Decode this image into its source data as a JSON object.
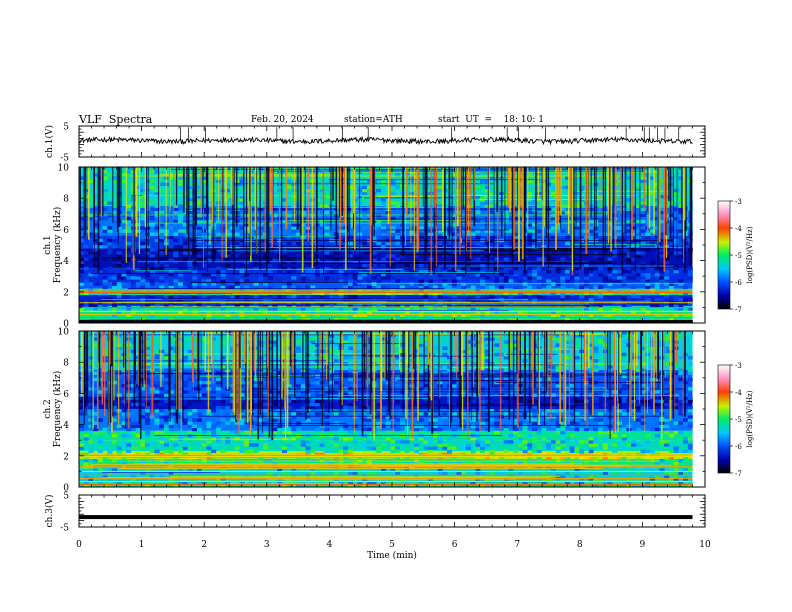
{
  "header": {
    "title": "VLF  Spectra",
    "date": "Feb. 20, 2024",
    "station": "station=ATH",
    "start_ut": "start  UT  =    18: 10: 1"
  },
  "chart_data": [
    {
      "type": "line",
      "name": "ch1-waveform",
      "ylabel": "ch.1(V)",
      "ylim": [
        -5,
        5
      ],
      "yticks": [
        -5,
        5
      ],
      "xlim": [
        0,
        10
      ],
      "baseline": 0.3,
      "spike_times": [
        1.62,
        1.75,
        2.02,
        3.16,
        3.42,
        4.21,
        4.62,
        5.95,
        6.84,
        7.02,
        7.45,
        8.74,
        9.03,
        9.11,
        9.24,
        9.36,
        9.58
      ]
    },
    {
      "type": "heatmap",
      "name": "ch1-spectrogram",
      "ylabel_top": "ch.1",
      "ylabel": "Frequency  (kHz)",
      "ylim": [
        0,
        10
      ],
      "yticks": [
        0,
        2,
        4,
        6,
        8,
        10
      ],
      "xlim": [
        0,
        10
      ],
      "colorbar": {
        "label": "log(PSD)(V²/Hz)",
        "range": [
          -7,
          -3
        ],
        "ticks": [
          -3,
          -4,
          -5,
          -6,
          -7
        ]
      },
      "bands": [
        {
          "from": 0.0,
          "to": 0.2,
          "level": -7.3
        },
        {
          "from": 0.2,
          "to": 0.8,
          "level": -5.2
        },
        {
          "from": 0.8,
          "to": 1.1,
          "level": -5.4
        },
        {
          "from": 1.1,
          "to": 1.8,
          "level": -6.4
        },
        {
          "from": 1.8,
          "to": 2.2,
          "level": -5.3
        },
        {
          "from": 2.2,
          "to": 2.6,
          "level": -6.0
        },
        {
          "from": 2.6,
          "to": 3.5,
          "level": -6.3
        },
        {
          "from": 3.5,
          "to": 4.8,
          "level": -6.6
        },
        {
          "from": 4.8,
          "to": 5.6,
          "level": -6.2
        },
        {
          "from": 5.6,
          "to": 7.5,
          "level": -5.9
        },
        {
          "from": 7.5,
          "to": 10.0,
          "level": -5.4
        }
      ]
    },
    {
      "type": "heatmap",
      "name": "ch2-spectrogram",
      "ylabel_top": "ch.2",
      "ylabel": "Frequency  (kHz)",
      "ylim": [
        0,
        10
      ],
      "yticks": [
        0,
        2,
        4,
        6,
        8,
        10
      ],
      "xlim": [
        0,
        10
      ],
      "colorbar": {
        "label": "log(PSD)(V²/Hz)",
        "range": [
          -7,
          -3
        ],
        "ticks": [
          -3,
          -4,
          -5,
          -6,
          -7
        ]
      },
      "bands": [
        {
          "from": 0.0,
          "to": 0.3,
          "level": -5.2
        },
        {
          "from": 0.3,
          "to": 1.2,
          "level": -5.5
        },
        {
          "from": 1.2,
          "to": 1.8,
          "level": -5.2
        },
        {
          "from": 1.8,
          "to": 2.3,
          "level": -4.6
        },
        {
          "from": 2.3,
          "to": 3.0,
          "level": -5.4
        },
        {
          "from": 3.0,
          "to": 3.6,
          "level": -5.3
        },
        {
          "from": 3.6,
          "to": 5.0,
          "level": -5.9
        },
        {
          "from": 5.0,
          "to": 5.8,
          "level": -6.5
        },
        {
          "from": 5.8,
          "to": 7.5,
          "level": -6.0
        },
        {
          "from": 7.5,
          "to": 10.0,
          "level": -5.5
        }
      ]
    },
    {
      "type": "line",
      "name": "ch3-waveform",
      "ylabel": "ch.3(V)",
      "ylim": [
        -5,
        5
      ],
      "yticks": [
        -5,
        5
      ],
      "xlim": [
        0,
        10
      ],
      "xlabel": "Time  (min)",
      "xticks": [
        0,
        1,
        2,
        3,
        4,
        5,
        6,
        7,
        8,
        9,
        10
      ],
      "level": -1.9
    }
  ]
}
